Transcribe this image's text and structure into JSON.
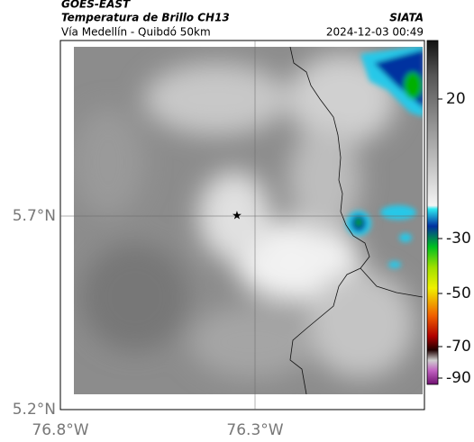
{
  "header": {
    "source": "GOES-EAST",
    "title": "Temperatura de Brillo CH13",
    "subtitle": "Vía Medellín - Quibdó 50km",
    "agency": "SIATA",
    "timestamp": "2024-12-03 00:49"
  },
  "map": {
    "lat_labels": [
      "5.7°N",
      "5.2°N"
    ],
    "lon_labels": [
      "76.8°W",
      "76.3°W"
    ]
  },
  "colorbar": {
    "ticks": [
      20,
      -30,
      -50,
      -70,
      -90
    ]
  }
}
